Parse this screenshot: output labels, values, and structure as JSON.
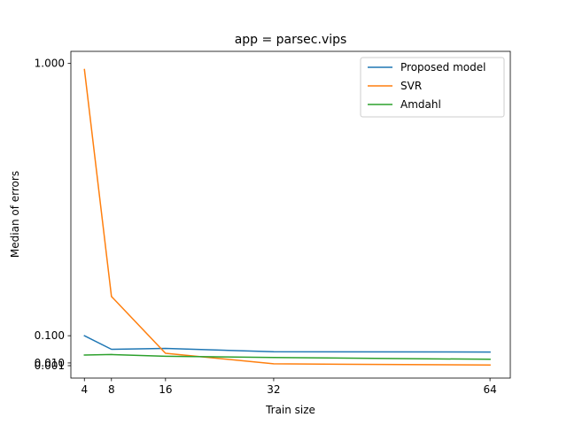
{
  "chart_data": {
    "type": "line",
    "title": "app = parsec.vips",
    "xlabel": "Train size",
    "ylabel": "Median of errors",
    "x": [
      4,
      8,
      16,
      32,
      64
    ],
    "xticks": [
      "4",
      "8",
      "16",
      "32",
      "64"
    ],
    "xlim": [
      2,
      67
    ],
    "ylim": [
      -0.04,
      1.04
    ],
    "yticks": [
      {
        "value": 1.0,
        "label": "1.000"
      },
      {
        "value": 0.1,
        "label": "0.100"
      },
      {
        "value": 0.01,
        "label": "0.010"
      },
      {
        "value": 0.001,
        "label": "0.001"
      }
    ],
    "legend_position": "top-right",
    "grid": false,
    "series": [
      {
        "name": "Proposed model",
        "color": "#1f77b4",
        "values": [
          0.1,
          0.055,
          0.058,
          0.047,
          0.046
        ]
      },
      {
        "name": "SVR",
        "color": "#ff7f0e",
        "values": [
          0.98,
          0.23,
          0.042,
          0.007,
          0.003
        ]
      },
      {
        "name": "Amdahl",
        "color": "#2ca02c",
        "values": [
          0.036,
          0.038,
          0.032,
          0.028,
          0.022
        ]
      }
    ]
  }
}
